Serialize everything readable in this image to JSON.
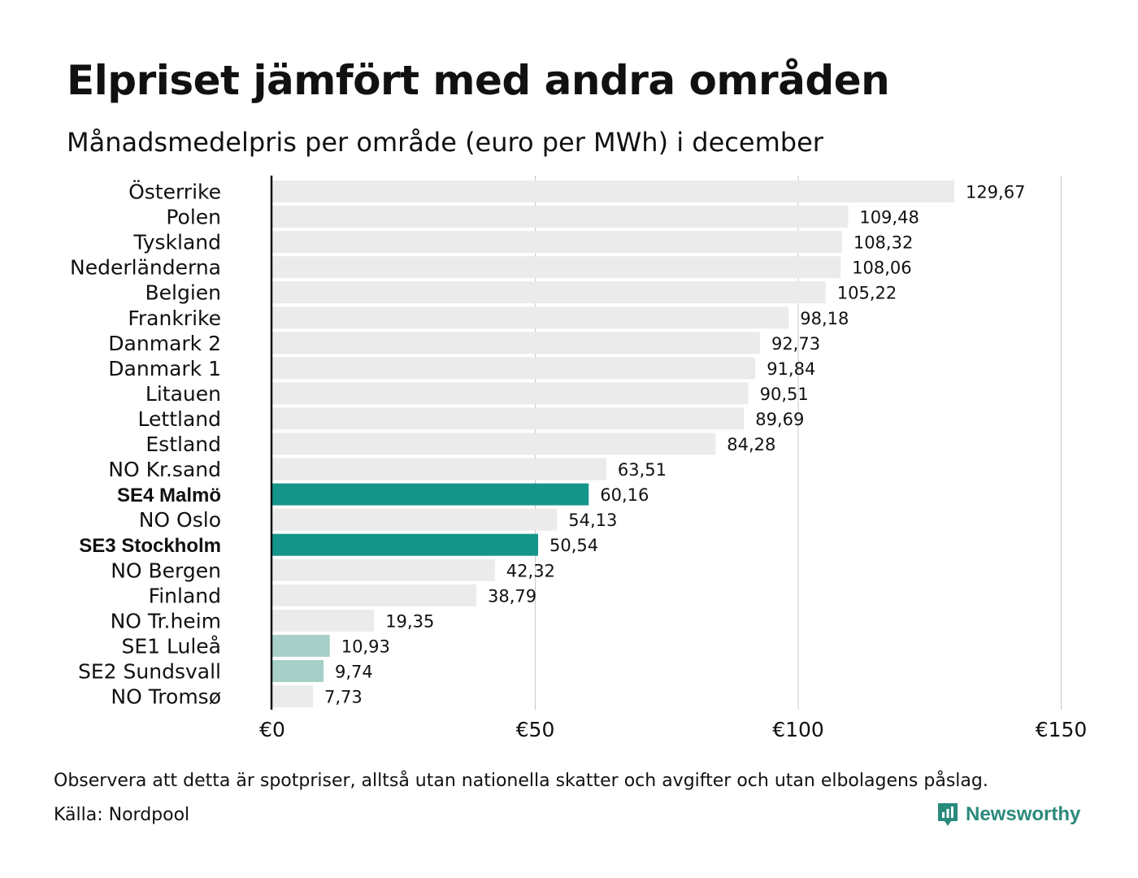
{
  "title": "Elpriset jämfört med andra områden",
  "subtitle": "Månadsmedelpris per område (euro per MWh) i december",
  "colors": {
    "default_bar": "#ebebeb",
    "highlight_bar": "#15958a",
    "light_highlight_bar": "#a6cfc8",
    "gridline": "#c8c8c8",
    "axis": "#111111",
    "brand": "#2a8a7c"
  },
  "chart_data": {
    "type": "bar",
    "orientation": "horizontal",
    "xlim": [
      0,
      150
    ],
    "xticks": [
      0,
      50,
      100,
      150
    ],
    "xtick_labels": [
      "€0",
      "€50",
      "€100",
      "€150"
    ],
    "grid": true,
    "bars": [
      {
        "category": "Österrike",
        "value": 129.67,
        "label": "129,67",
        "style": "default"
      },
      {
        "category": "Polen",
        "value": 109.48,
        "label": "109,48",
        "style": "default"
      },
      {
        "category": "Tyskland",
        "value": 108.32,
        "label": "108,32",
        "style": "default"
      },
      {
        "category": "Nederländerna",
        "value": 108.06,
        "label": "108,06",
        "style": "default"
      },
      {
        "category": "Belgien",
        "value": 105.22,
        "label": "105,22",
        "style": "default"
      },
      {
        "category": "Frankrike",
        "value": 98.18,
        "label": "98,18",
        "style": "default"
      },
      {
        "category": "Danmark  2",
        "value": 92.73,
        "label": "92,73",
        "style": "default"
      },
      {
        "category": "Danmark  1",
        "value": 91.84,
        "label": "91,84",
        "style": "default"
      },
      {
        "category": "Litauen",
        "value": 90.51,
        "label": "90,51",
        "style": "default"
      },
      {
        "category": "Lettland",
        "value": 89.69,
        "label": "89,69",
        "style": "default"
      },
      {
        "category": "Estland",
        "value": 84.28,
        "label": "84,28",
        "style": "default"
      },
      {
        "category": "NO Kr.sand",
        "value": 63.51,
        "label": "63,51",
        "style": "default"
      },
      {
        "category": "SE4 Malmö",
        "value": 60.16,
        "label": "60,16",
        "style": "highlight"
      },
      {
        "category": "NO Oslo",
        "value": 54.13,
        "label": "54,13",
        "style": "default"
      },
      {
        "category": "SE3 Stockholm",
        "value": 50.54,
        "label": "50,54",
        "style": "highlight"
      },
      {
        "category": "NO Bergen",
        "value": 42.32,
        "label": "42,32",
        "style": "default"
      },
      {
        "category": "Finland",
        "value": 38.79,
        "label": "38,79",
        "style": "default"
      },
      {
        "category": "NO Tr.heim",
        "value": 19.35,
        "label": "19,35",
        "style": "default"
      },
      {
        "category": "SE1  Luleå",
        "value": 10.93,
        "label": "10,93",
        "style": "light"
      },
      {
        "category": "SE2  Sundsvall",
        "value": 9.74,
        "label": "9,74",
        "style": "light"
      },
      {
        "category": "NO Tromsø",
        "value": 7.73,
        "label": "7,73",
        "style": "default"
      }
    ]
  },
  "footer": {
    "note": "Observera att detta är spotpriser, alltså utan nationella skatter och avgifter och utan elbolagens påslag.",
    "source": "Källa: Nordpool",
    "brand_name": "Newsworthy",
    "brand_icon": "newsworthy-logo-icon"
  }
}
